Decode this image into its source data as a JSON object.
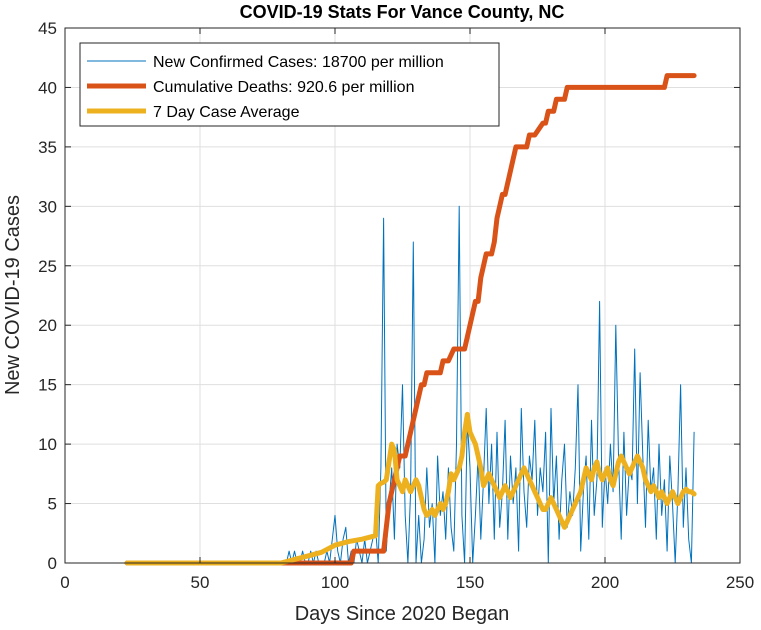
{
  "chart_data": {
    "type": "line",
    "title": "COVID-19 Stats For Vance County, NC",
    "xlabel": "Days Since 2020 Began",
    "ylabel": "New COVID-19 Cases",
    "xlim": [
      0,
      250
    ],
    "ylim": [
      0,
      45
    ],
    "xticks": [
      "0",
      "50",
      "100",
      "150",
      "200",
      "250"
    ],
    "yticks": [
      "0",
      "5",
      "10",
      "15",
      "20",
      "25",
      "30",
      "35",
      "40",
      "45"
    ],
    "grid": true,
    "legend_position": "top-left",
    "series": [
      {
        "name": "New Confirmed Cases: 18700 per million",
        "color": "#0072BD",
        "x": [
          23,
          40,
          60,
          80,
          82,
          83,
          84,
          85,
          86,
          87,
          88,
          89,
          90,
          91,
          92,
          93,
          94,
          95,
          96,
          97,
          98,
          99,
          100,
          101,
          102,
          103,
          104,
          105,
          106,
          107,
          108,
          109,
          110,
          111,
          112,
          113,
          114,
          115,
          116,
          117,
          118,
          119,
          120,
          121,
          122,
          123,
          124,
          125,
          126,
          127,
          128,
          129,
          130,
          131,
          132,
          133,
          134,
          135,
          136,
          137,
          138,
          139,
          140,
          141,
          142,
          143,
          144,
          145,
          146,
          147,
          148,
          149,
          150,
          151,
          152,
          153,
          154,
          155,
          156,
          157,
          158,
          159,
          160,
          161,
          162,
          163,
          164,
          165,
          166,
          167,
          168,
          169,
          170,
          171,
          172,
          173,
          174,
          175,
          176,
          177,
          178,
          179,
          180,
          181,
          182,
          183,
          184,
          185,
          186,
          187,
          188,
          189,
          190,
          191,
          192,
          193,
          194,
          195,
          196,
          197,
          198,
          199,
          200,
          201,
          202,
          203,
          204,
          205,
          206,
          207,
          208,
          209,
          210,
          211,
          212,
          213,
          214,
          215,
          216,
          217,
          218,
          219,
          220,
          221,
          222,
          223,
          224,
          225,
          226,
          227,
          228,
          229,
          230,
          231,
          232,
          233
        ],
        "y": [
          0,
          0,
          0,
          0,
          0,
          1,
          0,
          1,
          0,
          0,
          1,
          0,
          0,
          1,
          0,
          1,
          0,
          0,
          0,
          1,
          0,
          2,
          4,
          1,
          0,
          2,
          3,
          0,
          1,
          0,
          2,
          1,
          0,
          2,
          0,
          1,
          2,
          3,
          0,
          8,
          29,
          1,
          5,
          8,
          2,
          10,
          8,
          15,
          4,
          0,
          6,
          27,
          0,
          4,
          0,
          2,
          8,
          3,
          5,
          0,
          9,
          4,
          6,
          2,
          8,
          3,
          1,
          10,
          30,
          4,
          0,
          12,
          8,
          0,
          4,
          9,
          2,
          7,
          13,
          5,
          10,
          2,
          11,
          3,
          6,
          12,
          2,
          9,
          5,
          8,
          1,
          13,
          6,
          3,
          9,
          7,
          12,
          4,
          8,
          6,
          11,
          0,
          13,
          5,
          9,
          2,
          7,
          10,
          3,
          6,
          4,
          8,
          15,
          1,
          6,
          9,
          2,
          12,
          4,
          7,
          22,
          3,
          8,
          5,
          10,
          6,
          20,
          9,
          2,
          11,
          4,
          8,
          7,
          18,
          5,
          16,
          9,
          3,
          12,
          6,
          8,
          2,
          10,
          4,
          7,
          1,
          9,
          5,
          0,
          6,
          15,
          3,
          8,
          2,
          0,
          11
        ],
        "width": 1
      },
      {
        "name": "Cumulative Deaths: 920.6 per million",
        "color": "#D95319",
        "x": [
          23,
          106,
          107,
          118,
          120,
          122,
          123,
          124,
          126,
          127,
          128,
          129,
          130,
          131,
          132,
          133,
          134,
          135,
          136,
          138,
          139,
          140,
          141,
          142,
          144,
          145,
          146,
          147,
          148,
          149,
          150,
          151,
          152,
          153,
          154,
          155,
          156,
          157,
          158,
          159,
          160,
          161,
          162,
          163,
          164,
          165,
          166,
          167,
          170,
          171,
          172,
          173,
          174,
          177,
          178,
          179,
          181,
          182,
          183,
          185,
          186,
          187,
          189,
          190,
          191,
          222,
          223,
          233
        ],
        "y": [
          0,
          0,
          1,
          1,
          5,
          7,
          8,
          9,
          9,
          10,
          11,
          12,
          13,
          14,
          15,
          15,
          16,
          16,
          16,
          16,
          16,
          17,
          17,
          17,
          18,
          18,
          18,
          18,
          18,
          19,
          20,
          21,
          22,
          22,
          24,
          25,
          26,
          26,
          26,
          27,
          29,
          30,
          31,
          31,
          32,
          33,
          34,
          35,
          35,
          35,
          36,
          36,
          36,
          37,
          37,
          38,
          38,
          39,
          39,
          39,
          40,
          40,
          40,
          40,
          40,
          40,
          41,
          41
        ],
        "width": 5
      },
      {
        "name": "7 Day Case Average",
        "color": "#EDB120",
        "x": [
          23,
          40,
          60,
          80,
          85,
          90,
          95,
          100,
          105,
          110,
          115,
          116,
          117,
          118,
          119,
          120,
          121,
          122,
          123,
          124,
          125,
          126,
          127,
          128,
          129,
          130,
          131,
          132,
          133,
          134,
          135,
          136,
          137,
          138,
          139,
          140,
          141,
          142,
          143,
          144,
          145,
          146,
          147,
          148,
          149,
          150,
          151,
          152,
          153,
          154,
          155,
          156,
          157,
          158,
          159,
          160,
          161,
          162,
          163,
          164,
          165,
          166,
          167,
          168,
          169,
          170,
          171,
          172,
          173,
          174,
          175,
          176,
          177,
          178,
          179,
          180,
          181,
          182,
          183,
          184,
          185,
          186,
          187,
          188,
          189,
          190,
          191,
          192,
          193,
          194,
          195,
          196,
          197,
          198,
          199,
          200,
          201,
          202,
          203,
          204,
          205,
          206,
          207,
          208,
          209,
          210,
          211,
          212,
          213,
          214,
          215,
          216,
          217,
          218,
          219,
          220,
          221,
          222,
          223,
          224,
          225,
          226,
          227,
          228,
          229,
          230,
          231,
          232,
          233
        ],
        "y": [
          0,
          0,
          0,
          0,
          0.3,
          0.6,
          0.9,
          1.5,
          1.8,
          2.0,
          2.3,
          6.5,
          6.7,
          6.8,
          7.0,
          8.5,
          10.0,
          9.5,
          7.0,
          6.5,
          6.0,
          7.0,
          6.5,
          6.0,
          6.5,
          7.0,
          6.5,
          5.5,
          4.5,
          4.0,
          4.2,
          4.5,
          4.0,
          4.5,
          5.0,
          4.5,
          5.0,
          6.0,
          7.5,
          7.0,
          7.5,
          8.0,
          9.0,
          11.0,
          12.5,
          11.0,
          10.5,
          10.0,
          9.0,
          8.0,
          6.5,
          7.0,
          7.5,
          7.0,
          6.5,
          6.0,
          5.5,
          6.0,
          6.5,
          6.0,
          5.5,
          6.0,
          6.5,
          7.0,
          7.5,
          8.0,
          7.5,
          7.0,
          6.5,
          6.0,
          5.5,
          5.0,
          4.5,
          4.5,
          5.0,
          5.5,
          5.0,
          4.5,
          4.0,
          3.5,
          3.0,
          3.5,
          4.0,
          4.5,
          5.0,
          5.5,
          6.0,
          7.0,
          8.0,
          7.5,
          7.0,
          8.0,
          8.5,
          7.5,
          7.0,
          7.5,
          8.0,
          7.0,
          6.5,
          7.5,
          8.5,
          9.0,
          8.5,
          8.0,
          7.5,
          8.0,
          8.5,
          9.0,
          8.5,
          8.0,
          7.0,
          6.5,
          6.0,
          6.5,
          6.0,
          5.5,
          6.0,
          5.5,
          5.0,
          5.5,
          6.0,
          5.5,
          5.0,
          5.5,
          6.0,
          6.2,
          6.0,
          6.0,
          5.8
        ],
        "width": 5
      }
    ]
  }
}
